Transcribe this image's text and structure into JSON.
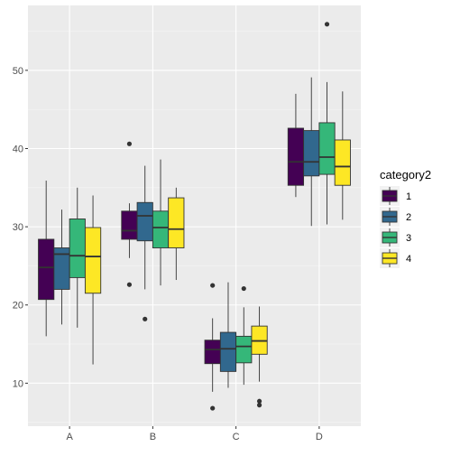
{
  "chart_data": {
    "type": "boxplot",
    "title": "",
    "xlabel": "",
    "ylabel": "",
    "categories": [
      "A",
      "B",
      "C",
      "D"
    ],
    "y_ticks": [
      10,
      20,
      30,
      40,
      50
    ],
    "ylim": [
      4.5,
      58.3
    ],
    "grid": true,
    "legend": {
      "title": "category2",
      "placement": "right"
    },
    "series": [
      {
        "name": "1",
        "color": "#440154",
        "boxes": [
          {
            "category": "A",
            "whisker_low": 16.0,
            "q1": 20.7,
            "median": 24.8,
            "q3": 28.4,
            "whisker_high": 35.9,
            "outliers": []
          },
          {
            "category": "B",
            "whisker_low": 26.0,
            "q1": 28.4,
            "median": 29.5,
            "q3": 32.0,
            "whisker_high": 33.0,
            "outliers": [
              40.6,
              22.6
            ]
          },
          {
            "category": "C",
            "whisker_low": 8.9,
            "q1": 12.5,
            "median": 14.3,
            "q3": 15.5,
            "whisker_high": 18.3,
            "outliers": [
              22.5,
              6.8
            ]
          },
          {
            "category": "D",
            "whisker_low": 33.8,
            "q1": 35.3,
            "median": 38.3,
            "q3": 42.6,
            "whisker_high": 47.0,
            "outliers": []
          }
        ]
      },
      {
        "name": "2",
        "color": "#31688e",
        "boxes": [
          {
            "category": "A",
            "whisker_low": 17.5,
            "q1": 22.0,
            "median": 26.5,
            "q3": 27.3,
            "whisker_high": 32.2,
            "outliers": []
          },
          {
            "category": "B",
            "whisker_low": 22.0,
            "q1": 28.2,
            "median": 31.4,
            "q3": 33.1,
            "whisker_high": 37.8,
            "outliers": [
              18.2
            ]
          },
          {
            "category": "C",
            "whisker_low": 9.4,
            "q1": 11.5,
            "median": 14.4,
            "q3": 16.5,
            "whisker_high": 22.9,
            "outliers": []
          },
          {
            "category": "D",
            "whisker_low": 30.1,
            "q1": 36.5,
            "median": 38.3,
            "q3": 42.3,
            "whisker_high": 49.1,
            "outliers": []
          }
        ]
      },
      {
        "name": "3",
        "color": "#35b779",
        "boxes": [
          {
            "category": "A",
            "whisker_low": 17.1,
            "q1": 23.5,
            "median": 26.3,
            "q3": 31.0,
            "whisker_high": 35.0,
            "outliers": []
          },
          {
            "category": "B",
            "whisker_low": 22.5,
            "q1": 27.3,
            "median": 29.9,
            "q3": 32.0,
            "whisker_high": 38.6,
            "outliers": []
          },
          {
            "category": "C",
            "whisker_low": 9.8,
            "q1": 12.6,
            "median": 14.7,
            "q3": 16.0,
            "whisker_high": 19.7,
            "outliers": [
              22.1
            ]
          },
          {
            "category": "D",
            "whisker_low": 30.3,
            "q1": 36.7,
            "median": 38.9,
            "q3": 43.3,
            "whisker_high": 48.5,
            "outliers": [
              55.9
            ]
          }
        ]
      },
      {
        "name": "4",
        "color": "#fde725",
        "boxes": [
          {
            "category": "A",
            "whisker_low": 12.4,
            "q1": 21.5,
            "median": 26.2,
            "q3": 29.9,
            "whisker_high": 34.0,
            "outliers": []
          },
          {
            "category": "B",
            "whisker_low": 23.2,
            "q1": 27.3,
            "median": 29.7,
            "q3": 33.7,
            "whisker_high": 35.0,
            "outliers": []
          },
          {
            "category": "C",
            "whisker_low": 10.2,
            "q1": 13.7,
            "median": 15.4,
            "q3": 17.3,
            "whisker_high": 19.8,
            "outliers": [
              7.7,
              7.2
            ]
          },
          {
            "category": "D",
            "whisker_low": 30.9,
            "q1": 35.3,
            "median": 37.7,
            "q3": 41.1,
            "whisker_high": 47.3,
            "outliers": []
          }
        ]
      }
    ]
  }
}
